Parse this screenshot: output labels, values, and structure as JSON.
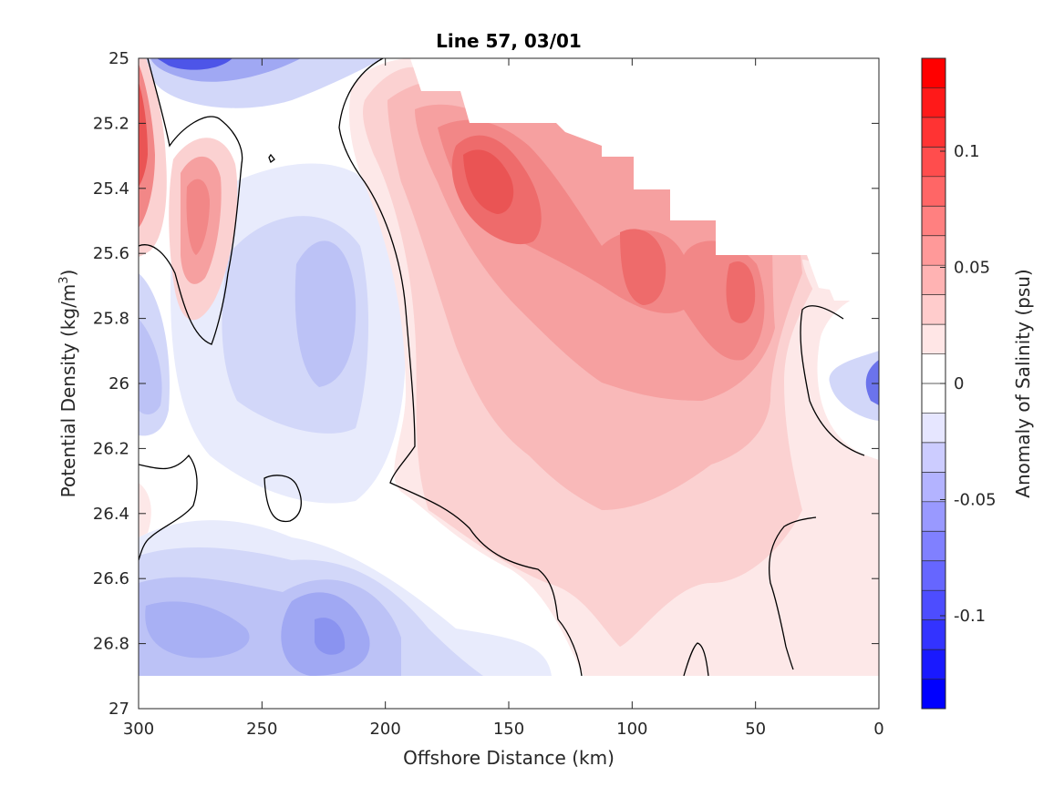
{
  "chart_data": {
    "type": "filled-contour",
    "title": "Line 57, 03/01",
    "xlabel": "Offshore Distance (km)",
    "ylabel_main": "Potential Density (kg/m",
    "ylabel_sup": "3",
    "ylabel_tail": ")",
    "colorbar_label": "Anomaly of Salinity (psu)",
    "xlim": [
      300,
      0
    ],
    "ylim": [
      25,
      27
    ],
    "x_reversed": true,
    "y_reversed": true,
    "xticks": [
      "300",
      "250",
      "200",
      "150",
      "100",
      "50",
      "0"
    ],
    "yticks": [
      "25",
      "25.2",
      "25.4",
      "25.6",
      "25.8",
      "26",
      "26.2",
      "26.4",
      "26.6",
      "26.8",
      "27"
    ],
    "colorbar_range": [
      -0.14,
      0.14
    ],
    "colorbar_levels": 22,
    "colorbar_ticks": [
      "0.1",
      "0.05",
      "0",
      "-0.05",
      "-0.1"
    ],
    "colors": {
      "positive": "#ff0000",
      "negative": "#0000ff",
      "zero": "#ffffff",
      "contour": "#000000"
    },
    "features": [
      {
        "kind": "max",
        "x": 160,
        "y": 25.4,
        "value": 0.085
      },
      {
        "kind": "max",
        "x": 95,
        "y": 25.65,
        "value": 0.075
      },
      {
        "kind": "max",
        "x": 55,
        "y": 25.72,
        "value": 0.072
      },
      {
        "kind": "max",
        "x": 300,
        "y": 25.25,
        "value": 0.09
      },
      {
        "kind": "max",
        "x": 275,
        "y": 25.45,
        "value": 0.045
      },
      {
        "kind": "min",
        "x": 280,
        "y": 25.0,
        "value": -0.13
      },
      {
        "kind": "min",
        "x": 220,
        "y": 26.8,
        "value": -0.065
      },
      {
        "kind": "min",
        "x": 275,
        "y": 26.75,
        "value": -0.05
      },
      {
        "kind": "min",
        "x": 235,
        "y": 25.75,
        "value": -0.045
      },
      {
        "kind": "min",
        "x": 295,
        "y": 26.0,
        "value": -0.04
      },
      {
        "kind": "min",
        "x": 1,
        "y": 26.0,
        "value": -0.11
      }
    ]
  }
}
